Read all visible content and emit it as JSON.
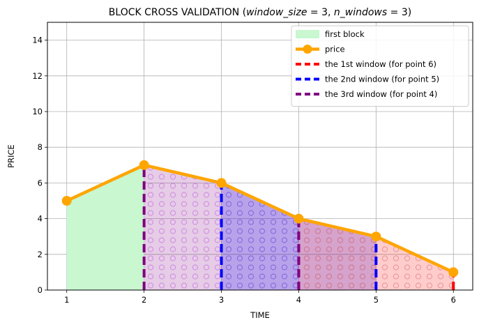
{
  "chart_data": {
    "type": "line",
    "title": "BLOCK CROSS VALIDATION (window_size = 3, n_windows = 3)",
    "title_parts": {
      "prefix": "BLOCK CROSS VALIDATION (",
      "var1": "window_size",
      "eq1": " = 3, ",
      "var2": "n_windows",
      "eq2": " = 3)"
    },
    "xlabel": "TIME",
    "ylabel": "PRICE",
    "xlim": [
      0.75,
      6.25
    ],
    "ylim": [
      0,
      15
    ],
    "xticks": [
      1,
      2,
      3,
      4,
      5,
      6
    ],
    "yticks": [
      0,
      2,
      4,
      6,
      8,
      10,
      12,
      14
    ],
    "grid": true,
    "legend_position": "top-right",
    "series": [
      {
        "name": "price",
        "x": [
          1,
          2,
          3,
          4,
          5,
          6
        ],
        "values": [
          5,
          7,
          6,
          4,
          3,
          1
        ],
        "color": "#FFA500"
      }
    ],
    "regions": [
      {
        "name": "first block",
        "x": [
          1,
          2
        ],
        "color": "#c8f7d0"
      },
      {
        "name": "the 3rd window (for point 4)",
        "x": [
          2,
          4
        ],
        "color": "#800080"
      },
      {
        "name": "the 2nd window (for point 5)",
        "x": [
          3,
          5
        ],
        "color": "#0000ff"
      },
      {
        "name": "the 1st window (for point 6)",
        "x": [
          4,
          6
        ],
        "color": "#ff0000"
      }
    ],
    "window_lines": [
      {
        "name": "the 1st window (for point 6)",
        "x": [
          4,
          6
        ],
        "color": "#ff0000"
      },
      {
        "name": "the 2nd window (for point 5)",
        "x": [
          3,
          5
        ],
        "color": "#0000ff"
      },
      {
        "name": "the 3rd window (for point 4)",
        "x": [
          2,
          4
        ],
        "color": "#800080"
      }
    ],
    "legend": [
      {
        "label": "first block",
        "kind": "patch",
        "color": "#c8f7d0"
      },
      {
        "label": "price",
        "kind": "line-marker",
        "color": "#FFA500"
      },
      {
        "label": "the 1st window (for point 6)",
        "kind": "dashed",
        "color": "#ff0000"
      },
      {
        "label": "the 2nd window (for point 5)",
        "kind": "dashed",
        "color": "#0000ff"
      },
      {
        "label": "the 3rd window (for point 4)",
        "kind": "dashed",
        "color": "#800080"
      }
    ]
  }
}
